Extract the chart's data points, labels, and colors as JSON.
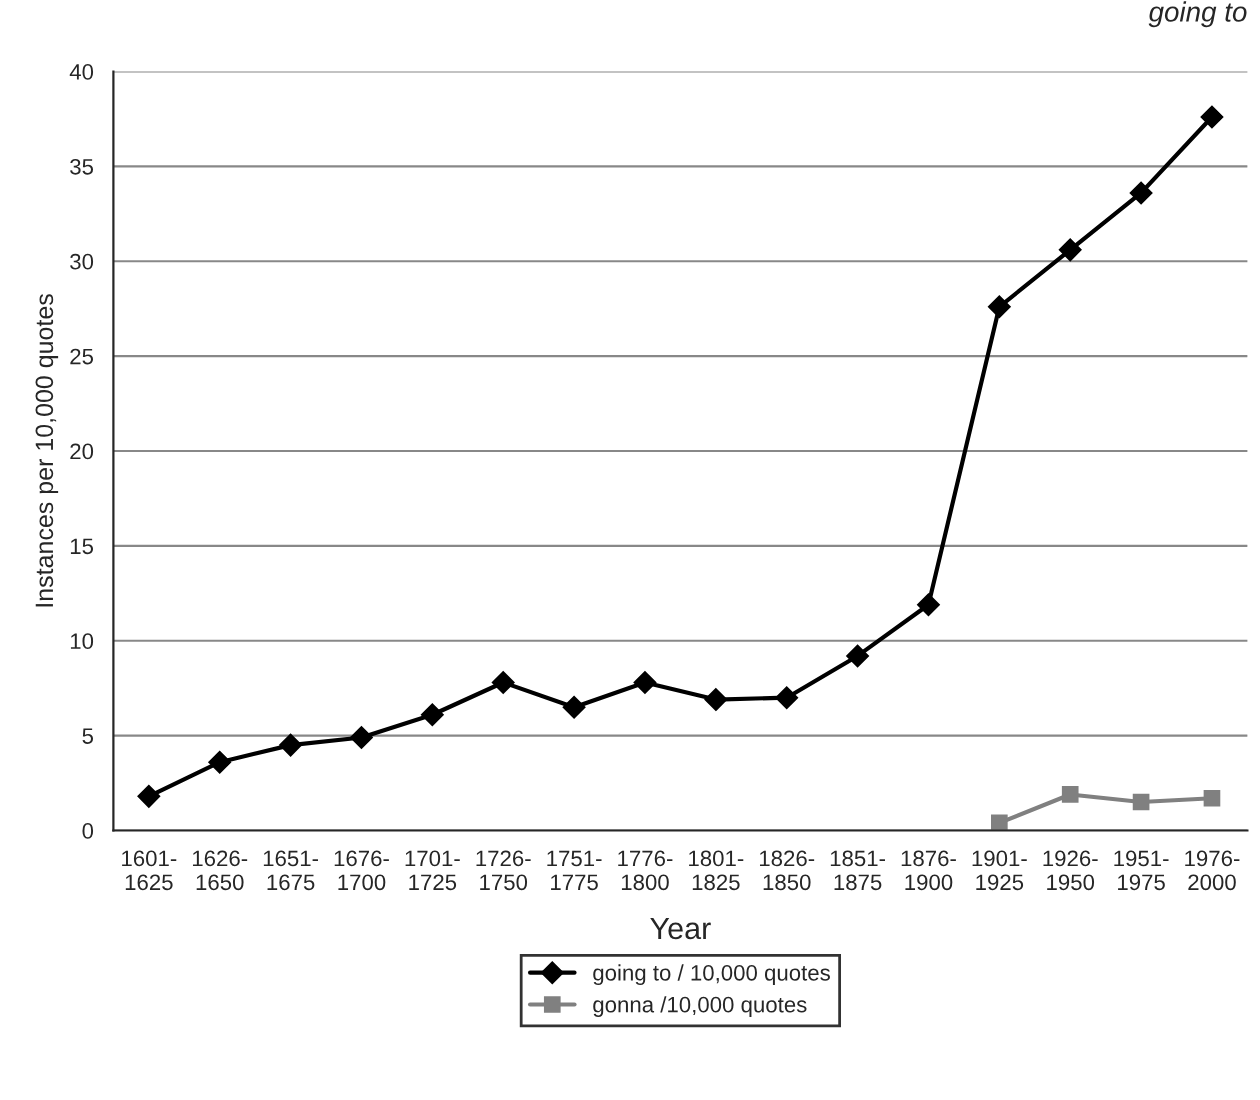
{
  "chart_data": {
    "type": "line",
    "title": "going to",
    "xlabel": "Year",
    "ylabel": "Instances per 10,000 quotes",
    "categories": [
      "1601-\n1625",
      "1626-\n1650",
      "1651-\n1675",
      "1676-\n1700",
      "1701-\n1725",
      "1726-\n1750",
      "1751-\n1775",
      "1776-\n1800",
      "1801-\n1825",
      "1826-\n1850",
      "1851-\n1875",
      "1876-\n1900",
      "1901-\n1925",
      "1926-\n1950",
      "1951-\n1975",
      "1976-\n2000"
    ],
    "series": [
      {
        "name": "going to / 10,000 quotes",
        "color": "#000000",
        "marker": "diamond",
        "values": [
          1.8,
          3.6,
          4.5,
          4.9,
          6.1,
          7.8,
          6.5,
          7.8,
          6.9,
          7.0,
          9.2,
          11.9,
          27.6,
          30.6,
          33.6,
          37.6
        ]
      },
      {
        "name": "gonna /10,000 quotes",
        "color": "#808080",
        "marker": "square",
        "values": [
          null,
          null,
          null,
          null,
          null,
          null,
          null,
          null,
          null,
          null,
          null,
          null,
          0.4,
          1.9,
          1.5,
          1.7
        ]
      }
    ],
    "ylim": [
      0,
      40
    ],
    "yticks": [
      0,
      5,
      10,
      15,
      20,
      25,
      30,
      35,
      40
    ],
    "grid": "y",
    "legend": "bottom"
  }
}
